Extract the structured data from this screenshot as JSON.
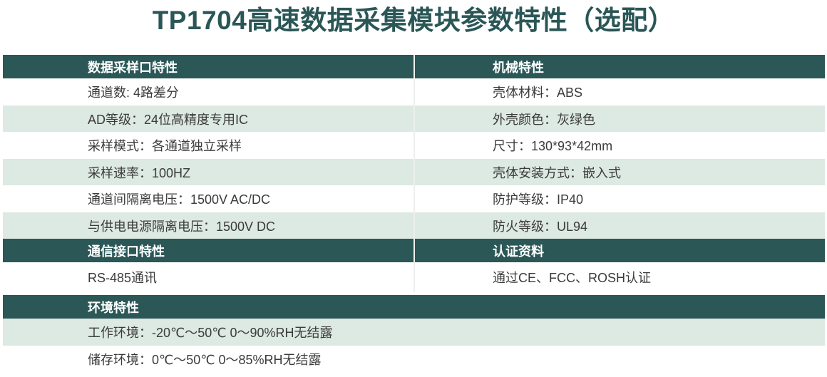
{
  "title": "TP1704高速数据采集模块参数特性（选配）",
  "colors": {
    "header_bg": "#2b5757",
    "row_alt_bg": "#dde9e3",
    "row_bg": "#ffffff",
    "title_color": "#2a5656",
    "header_text": "#ffffff",
    "body_text": "#3b3b3b",
    "divider": "#edf0ee"
  },
  "sections": [
    {
      "type": "two-column",
      "left_header": "数据采样口特性",
      "right_header": "机械特性",
      "rows": [
        {
          "left": "通道数: 4路差分",
          "right": "壳体材料：ABS"
        },
        {
          "left": "AD等级：24位高精度专用IC",
          "right": "外壳颜色：灰绿色"
        },
        {
          "left": "采样模式：各通道独立采样",
          "right": "尺寸：130*93*42mm"
        },
        {
          "left": "采样速率：100HZ",
          "right": "壳体安装方式：嵌入式"
        },
        {
          "left": "通道间隔离电压：1500V AC/DC",
          "right": "防护等级：IP40"
        },
        {
          "left": "与供电电源隔离电压：1500V DC",
          "right": "防火等级：UL94"
        }
      ]
    },
    {
      "type": "two-column",
      "left_header": "通信接口特性",
      "right_header": "认证资料",
      "rows": [
        {
          "left": "RS-485通讯",
          "right": "通过CE、FCC、ROSH认证"
        }
      ]
    },
    {
      "type": "full-width",
      "header": "环境特性",
      "rows": [
        "工作环境：-20℃～50℃ 0～90%RH无结露",
        "储存环境：0℃～50℃ 0～85%RH无结露"
      ]
    }
  ]
}
